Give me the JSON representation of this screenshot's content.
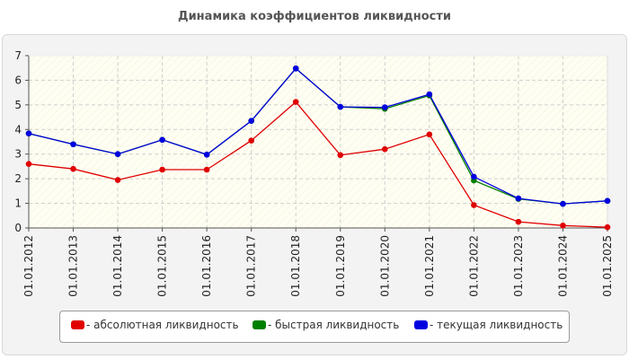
{
  "chart_data": {
    "type": "line",
    "title": "Динамика коэффициентов ликвидности",
    "xlabel": "",
    "ylabel": "",
    "categories": [
      "01.01.2012",
      "01.01.2013",
      "01.01.2014",
      "01.01.2015",
      "01.01.2016",
      "01.01.2017",
      "01.01.2018",
      "01.01.2019",
      "01.01.2020",
      "01.01.2021",
      "01.01.2022",
      "01.01.2023",
      "01.01.2024",
      "01.01.2025"
    ],
    "ylim": [
      0,
      7
    ],
    "yticks": [
      0,
      1,
      2,
      3,
      4,
      5,
      6,
      7
    ],
    "grid": true,
    "legend_position": "bottom",
    "series": [
      {
        "name": "- абсолютная ликвидность",
        "color": "#e00000",
        "values": [
          2.6,
          2.4,
          1.95,
          2.37,
          2.37,
          3.55,
          5.12,
          2.96,
          3.2,
          3.8,
          0.93,
          0.25,
          0.1,
          0.03
        ]
      },
      {
        "name": "- быстрая ликвидность",
        "color": "#008000",
        "values": [
          3.84,
          3.4,
          3.0,
          3.58,
          2.98,
          4.35,
          6.48,
          4.92,
          4.84,
          5.38,
          1.93,
          1.18,
          0.98,
          1.1
        ]
      },
      {
        "name": "- текущая ликвидность",
        "color": "#0000e0",
        "values": [
          3.84,
          3.4,
          3.0,
          3.58,
          2.98,
          4.35,
          6.48,
          4.92,
          4.9,
          5.43,
          2.08,
          1.2,
          0.98,
          1.1
        ]
      }
    ]
  }
}
